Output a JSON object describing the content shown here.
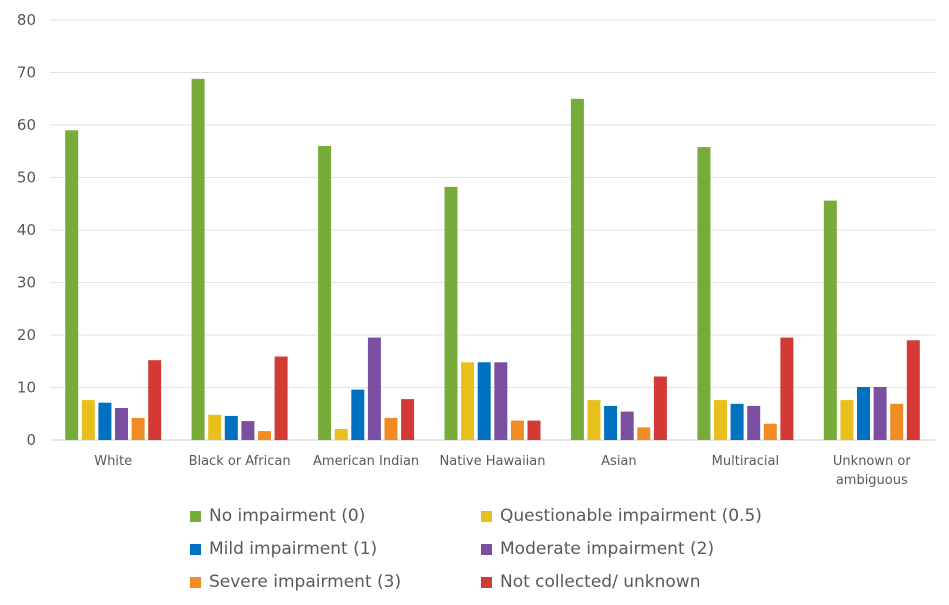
{
  "chart_data": {
    "type": "bar",
    "ylim": [
      0,
      80
    ],
    "yticks": [
      0,
      10,
      20,
      30,
      40,
      50,
      60,
      70,
      80
    ],
    "grid": true,
    "legend_position": "bottom",
    "categories": [
      "White",
      "Black or African",
      "American Indian",
      "Native Hawaiian",
      "Asian",
      "Multiracial",
      "Unknown or ambiguous"
    ],
    "series": [
      {
        "name": "No impairment (0)",
        "color": "#77AC3B",
        "values": [
          59,
          68.8,
          56,
          48.2,
          65,
          55.8,
          45.6
        ]
      },
      {
        "name": "Questionable impairment (0.5)",
        "color": "#E8C01C",
        "values": [
          7.6,
          4.8,
          2.1,
          14.8,
          7.6,
          7.6,
          7.6
        ]
      },
      {
        "name": "Mild impairment (1)",
        "color": "#0070C0",
        "values": [
          7.1,
          4.6,
          9.6,
          14.8,
          6.5,
          6.9,
          10.1
        ]
      },
      {
        "name": "Moderate impairment (2)",
        "color": "#7A4FA2",
        "values": [
          6.1,
          3.6,
          19.5,
          14.8,
          5.4,
          6.5,
          10.1
        ]
      },
      {
        "name": "Severe impairment (3)",
        "color": "#F08C23",
        "values": [
          4.2,
          1.7,
          4.2,
          3.7,
          2.4,
          3.1,
          6.9
        ]
      },
      {
        "name": "Not collected/ unknown",
        "color": "#D33A35",
        "values": [
          15.2,
          15.9,
          7.8,
          3.7,
          12.1,
          19.5,
          19
        ]
      }
    ]
  }
}
